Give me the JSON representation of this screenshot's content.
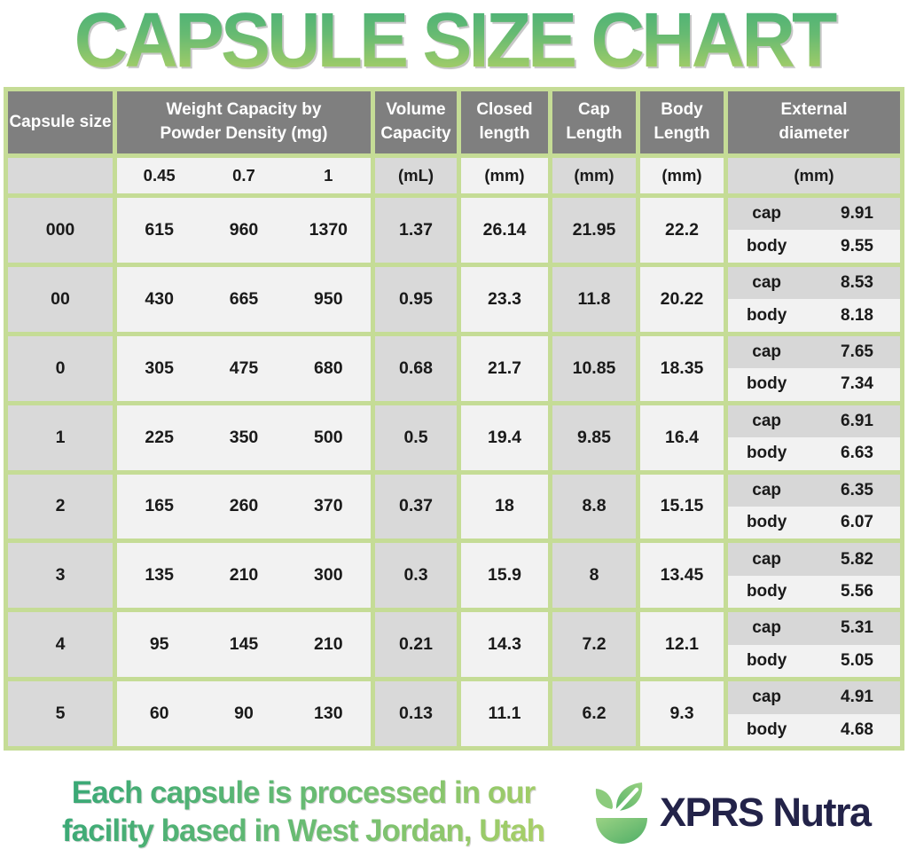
{
  "title": "CAPSULE SIZE CHART",
  "table": {
    "headers": {
      "capsule_size": "Capsule size",
      "weight": "Weight Capacity by Powder Density (mg)",
      "volume": "Volume Capacity",
      "closed": "Closed length",
      "cap": "Cap Length",
      "body": "Body Length",
      "external": "External diameter"
    },
    "units": {
      "density_045": "0.45",
      "density_07": "0.7",
      "density_1": "1",
      "volume": "(mL)",
      "closed": "(mm)",
      "cap": "(mm)",
      "body": "(mm)",
      "external": "(mm)"
    },
    "ext_labels": {
      "cap": "cap",
      "body": "body"
    }
  },
  "chart_data": {
    "type": "table",
    "title": "CAPSULE SIZE CHART",
    "columns": [
      "Capsule size",
      "Weight Capacity by Powder Density 0.45 (mg)",
      "Weight Capacity by Powder Density 0.7 (mg)",
      "Weight Capacity by Powder Density 1 (mg)",
      "Volume Capacity (mL)",
      "Closed length (mm)",
      "Cap Length (mm)",
      "Body Length (mm)",
      "External diameter cap (mm)",
      "External diameter body (mm)"
    ],
    "rows": [
      {
        "size": "000",
        "w045": 615,
        "w07": 960,
        "w1": 1370,
        "vol": 1.37,
        "closed": 26.14,
        "cap_len": 21.95,
        "body_len": 22.2,
        "ext_cap": 9.91,
        "ext_body": 9.55
      },
      {
        "size": "00",
        "w045": 430,
        "w07": 665,
        "w1": 950,
        "vol": 0.95,
        "closed": 23.3,
        "cap_len": 11.8,
        "body_len": 20.22,
        "ext_cap": 8.53,
        "ext_body": 8.18
      },
      {
        "size": "0",
        "w045": 305,
        "w07": 475,
        "w1": 680,
        "vol": 0.68,
        "closed": 21.7,
        "cap_len": 10.85,
        "body_len": 18.35,
        "ext_cap": 7.65,
        "ext_body": 7.34
      },
      {
        "size": "1",
        "w045": 225,
        "w07": 350,
        "w1": 500,
        "vol": 0.5,
        "closed": 19.4,
        "cap_len": 9.85,
        "body_len": 16.4,
        "ext_cap": 6.91,
        "ext_body": 6.63
      },
      {
        "size": "2",
        "w045": 165,
        "w07": 260,
        "w1": 370,
        "vol": 0.37,
        "closed": 18,
        "cap_len": 8.8,
        "body_len": 15.15,
        "ext_cap": 6.35,
        "ext_body": 6.07
      },
      {
        "size": "3",
        "w045": 135,
        "w07": 210,
        "w1": 300,
        "vol": 0.3,
        "closed": 15.9,
        "cap_len": 8,
        "body_len": 13.45,
        "ext_cap": 5.82,
        "ext_body": 5.56
      },
      {
        "size": "4",
        "w045": 95,
        "w07": 145,
        "w1": 210,
        "vol": 0.21,
        "closed": 14.3,
        "cap_len": 7.2,
        "body_len": 12.1,
        "ext_cap": 5.31,
        "ext_body": 5.05
      },
      {
        "size": "5",
        "w045": 60,
        "w07": 90,
        "w1": 130,
        "vol": 0.13,
        "closed": 11.1,
        "cap_len": 6.2,
        "body_len": 9.3,
        "ext_cap": 4.91,
        "ext_body": 4.68
      }
    ]
  },
  "footer": {
    "tagline_line1": "Each capsule is processed in our",
    "tagline_line2": "facility based in West Jordan, Utah",
    "brand": "XPRS Nutra"
  },
  "colors": {
    "header_gray": "#7f7f7f",
    "cell_gray": "#d9d9d9",
    "cell_light": "#f2f2f2",
    "border_green": "#c5dc96",
    "title_green_top": "#3fae79",
    "title_green_bottom": "#b9d464",
    "brand_navy": "#232349"
  }
}
